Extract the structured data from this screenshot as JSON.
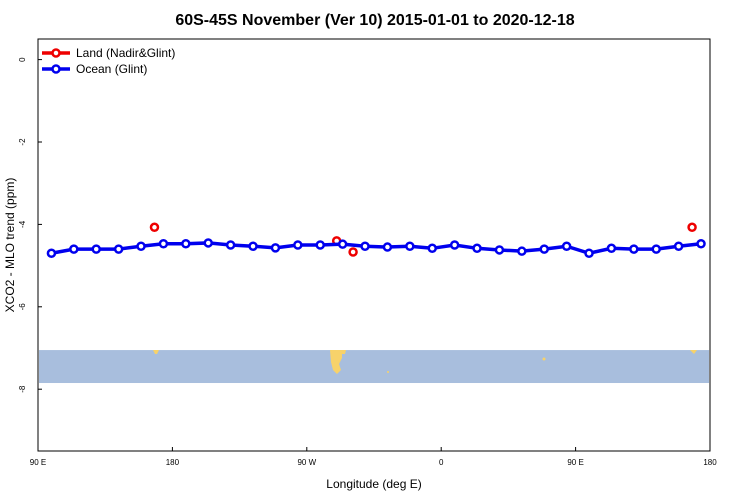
{
  "chart_data": {
    "type": "line",
    "title": "60S-45S November (Ver 10)   2015-01-01 to 2020-12-18",
    "xlabel": "Longitude (deg E)",
    "ylabel": "XCO2 - MLO trend (ppm)",
    "xlim": [
      90,
      540
    ],
    "ylim": [
      -9.5,
      0.5
    ],
    "x_ticks": [
      {
        "value": 90,
        "label": "90 E"
      },
      {
        "value": 180,
        "label": "180"
      },
      {
        "value": 270,
        "label": "90 W"
      },
      {
        "value": 360,
        "label": "0"
      },
      {
        "value": 450,
        "label": "90 E"
      },
      {
        "value": 540,
        "label": "180"
      }
    ],
    "y_ticks": [
      {
        "value": 0,
        "label": "0"
      },
      {
        "value": -2,
        "label": "-2"
      },
      {
        "value": -4,
        "label": "-4"
      },
      {
        "value": -6,
        "label": "-6"
      },
      {
        "value": -8,
        "label": "-8"
      }
    ],
    "legend_position": "top-left",
    "land_band": {
      "y_top": -7.05,
      "y_bottom": -7.85,
      "color": "#a8bedd"
    },
    "land_color": "#f7d26a",
    "series": [
      {
        "name": "Land (Nadir&Glint)",
        "color": "#ee0000",
        "style": "points",
        "x": [
          168,
          290,
          301,
          528
        ],
        "y": [
          -4.07,
          -4.4,
          -4.67,
          -4.07
        ]
      },
      {
        "name": "Ocean (Glint)",
        "color": "#0000ee",
        "style": "line+points",
        "x": [
          99,
          114,
          129,
          144,
          159,
          174,
          189,
          204,
          219,
          234,
          249,
          264,
          279,
          294,
          309,
          324,
          339,
          354,
          369,
          384,
          399,
          414,
          429,
          444,
          459,
          474,
          489,
          504,
          519,
          534
        ],
        "y": [
          -4.7,
          -4.6,
          -4.6,
          -4.6,
          -4.53,
          -4.47,
          -4.47,
          -4.45,
          -4.5,
          -4.53,
          -4.57,
          -4.5,
          -4.5,
          -4.48,
          -4.53,
          -4.55,
          -4.53,
          -4.58,
          -4.5,
          -4.58,
          -4.62,
          -4.65,
          -4.6,
          -4.53,
          -4.7,
          -4.58,
          -4.6,
          -4.6,
          -4.53,
          -4.47
        ]
      }
    ]
  }
}
